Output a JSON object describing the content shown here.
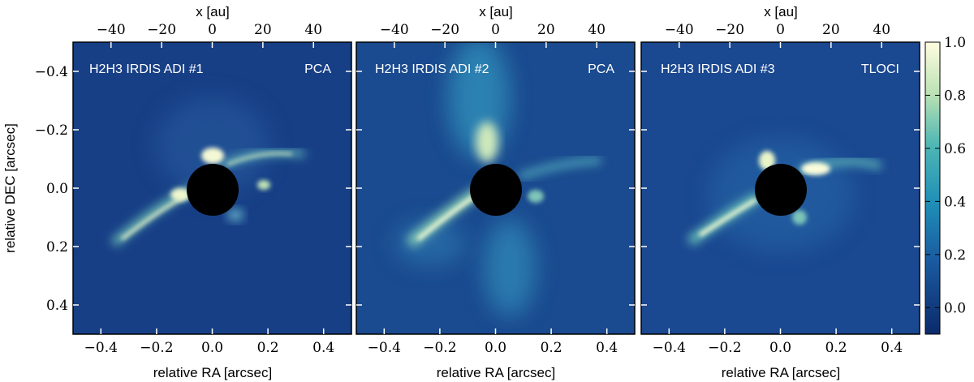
{
  "figure": {
    "x_label": "relative RA [arcsec]",
    "y_label": "relative DEC [arcsec]",
    "top_label": "x [au]",
    "x_ticks": [
      "−0.4",
      "−0.2",
      "0.0",
      "0.2",
      "0.4"
    ],
    "y_ticks": [
      "0.4",
      "0.2",
      "0.0",
      "−0.2",
      "−0.4"
    ],
    "top_ticks": [
      "−40",
      "−20",
      "0",
      "20",
      "40"
    ],
    "colorbar_ticks": [
      "1.0",
      "0.8",
      "0.6",
      "0.4",
      "0.2",
      "0.0"
    ],
    "colormap": {
      "low": "#0b2a6a",
      "mid": "#1f8fb7",
      "high": "#fffde0"
    },
    "mask_color": "#000000",
    "panels": [
      {
        "label_left": "H2H3 IRDIS ADI #1",
        "label_right": "PCA"
      },
      {
        "label_left": "H2H3 IRDIS ADI #2",
        "label_right": "PCA"
      },
      {
        "label_left": "H2H3 IRDIS ADI #3",
        "label_right": "TLOCI"
      }
    ]
  },
  "chart_data": {
    "type": "heatmap",
    "x_range": [
      -0.5,
      0.5
    ],
    "y_range": [
      -0.5,
      0.5
    ],
    "top_axis_range": [
      -55,
      55
    ],
    "colorbar_range": [
      -0.1,
      1.0
    ],
    "colorbar_ticks": [
      0.0,
      0.2,
      0.4,
      0.6,
      0.8,
      1.0
    ],
    "x_ticks": [
      -0.4,
      -0.2,
      0.0,
      0.2,
      0.4
    ],
    "y_ticks": [
      -0.4,
      -0.2,
      0.0,
      0.2,
      0.4
    ],
    "top_ticks": [
      -40,
      -20,
      0,
      20,
      40
    ],
    "mask_radius": 0.09
  }
}
